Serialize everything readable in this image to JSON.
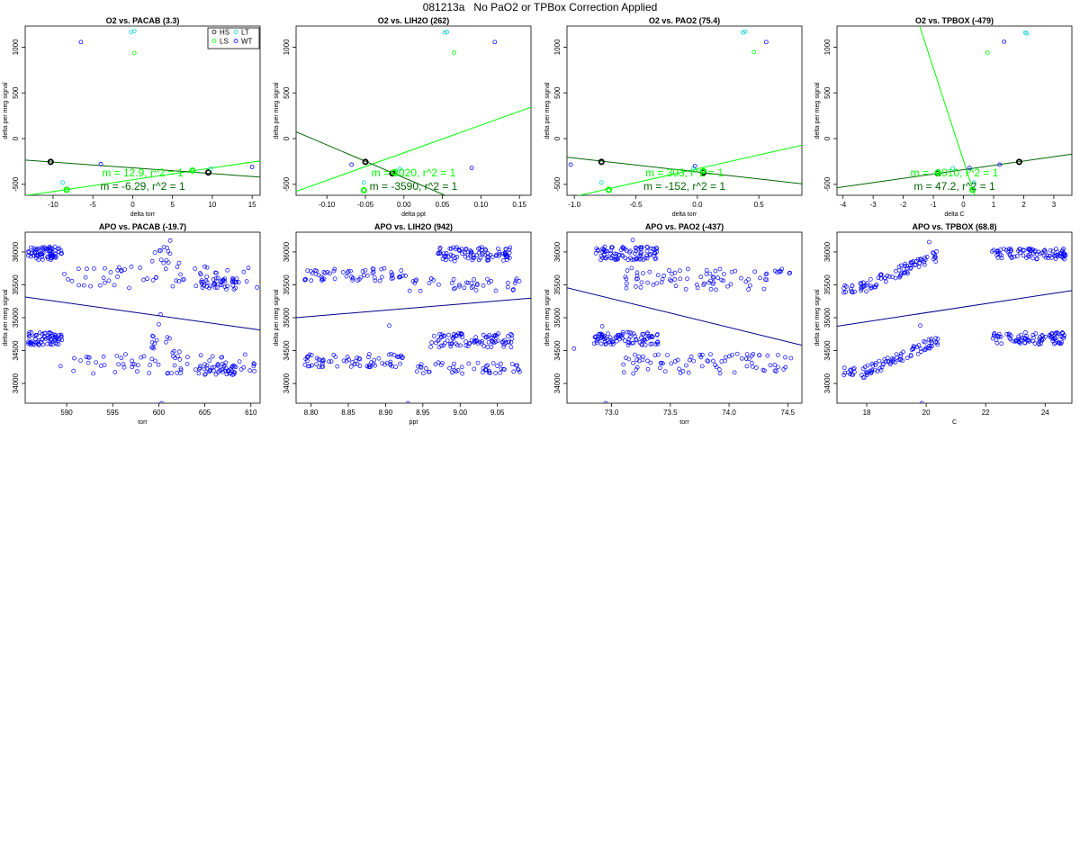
{
  "title": "081213a   No PaO2 or TPBox Correction Applied",
  "colors": {
    "HS": "#000000",
    "LS": "#00ff00",
    "LT": "#00cccc",
    "WT": "#0000ff",
    "fit_dark": "#006400",
    "fit_light": "#00ff00",
    "apo_fit": "#00008b",
    "apo_pts": "#0000ff"
  },
  "legend": {
    "labels": [
      "HS",
      "LS",
      "LT",
      "WT"
    ],
    "display": [
      "HS",
      "LS",
      "LT",
      "WT"
    ]
  },
  "chart_data": [
    {
      "type": "scatter",
      "title": "O2 vs. PACAB (3.3)",
      "xlabel": "delta torr",
      "ylabel": "delta per meg signal",
      "xlim": [
        -13.5,
        16
      ],
      "ylim": [
        -620,
        1230
      ],
      "xticks": [
        -10,
        -5,
        0,
        5,
        10,
        15
      ],
      "yticks": [
        -500,
        0,
        500,
        1000
      ],
      "points": [
        {
          "g": "HS",
          "x": -10.3,
          "y": -255
        },
        {
          "g": "HS",
          "x": 9.5,
          "y": -370
        },
        {
          "g": "LS",
          "x": -8.3,
          "y": -560
        },
        {
          "g": "LS",
          "x": 7.5,
          "y": -350
        },
        {
          "g": "LS",
          "x": 0.2,
          "y": 935
        },
        {
          "g": "LT",
          "x": -0.2,
          "y": 1165
        },
        {
          "g": "LT",
          "x": 0.2,
          "y": 1175
        },
        {
          "g": "LT",
          "x": -8.8,
          "y": -480
        },
        {
          "g": "LT",
          "x": 9.8,
          "y": -330
        },
        {
          "g": "WT",
          "x": -6.5,
          "y": 1055
        },
        {
          "g": "WT",
          "x": -4.0,
          "y": -280
        },
        {
          "g": "WT",
          "x": 15.0,
          "y": -310
        }
      ],
      "fits": [
        {
          "color": "light",
          "slope": 12.9,
          "intercept": -450
        },
        {
          "color": "dark",
          "slope": -6.29,
          "intercept": -320
        }
      ],
      "annotations": [
        {
          "text": "m = 12.9, r^2 = 1",
          "color": "light"
        },
        {
          "text": "m = -6.29, r^2 = 1",
          "color": "dark"
        }
      ],
      "legend": true
    },
    {
      "type": "scatter",
      "title": "O2 vs. LIH2O (262)",
      "xlabel": "delta ppt",
      "ylabel": "delta per meg signal",
      "xlim": [
        -0.14,
        0.165
      ],
      "ylim": [
        -620,
        1230
      ],
      "xticks": [
        -0.1,
        -0.05,
        0.0,
        0.05,
        0.1,
        0.15
      ],
      "yticks": [
        -500,
        0,
        500,
        1000
      ],
      "points": [
        {
          "g": "HS",
          "x": -0.05,
          "y": -255
        },
        {
          "g": "HS",
          "x": -0.015,
          "y": -380
        },
        {
          "g": "LS",
          "x": -0.052,
          "y": -565
        },
        {
          "g": "LS",
          "x": -0.013,
          "y": -370
        },
        {
          "g": "LS",
          "x": 0.065,
          "y": 940
        },
        {
          "g": "LT",
          "x": 0.053,
          "y": 1160
        },
        {
          "g": "LT",
          "x": 0.056,
          "y": 1165
        },
        {
          "g": "LT",
          "x": -0.052,
          "y": -480
        },
        {
          "g": "LT",
          "x": -0.005,
          "y": -330
        },
        {
          "g": "WT",
          "x": 0.118,
          "y": 1055
        },
        {
          "g": "WT",
          "x": -0.068,
          "y": -285
        },
        {
          "g": "WT",
          "x": 0.088,
          "y": -320
        }
      ],
      "fits": [
        {
          "color": "light",
          "slope": 3020,
          "intercept": -155
        },
        {
          "color": "dark",
          "slope": -3590,
          "intercept": -428
        }
      ],
      "annotations": [
        {
          "text": "m = 3020, r^2 = 1",
          "color": "light"
        },
        {
          "text": "m = -3590, r^2 = 1",
          "color": "dark"
        }
      ],
      "legend": false
    },
    {
      "type": "scatter",
      "title": "O2 vs. PAO2 (75.4)",
      "xlabel": "delta torr",
      "ylabel": "delta per meg signal",
      "xlim": [
        -1.06,
        0.85
      ],
      "ylim": [
        -620,
        1230
      ],
      "xticks": [
        -1.0,
        -0.5,
        0.0,
        0.5
      ],
      "yticks": [
        -500,
        0,
        500,
        1000
      ],
      "points": [
        {
          "g": "HS",
          "x": -0.78,
          "y": -255
        },
        {
          "g": "HS",
          "x": 0.05,
          "y": -370
        },
        {
          "g": "LS",
          "x": -0.72,
          "y": -560
        },
        {
          "g": "LS",
          "x": 0.05,
          "y": -355
        },
        {
          "g": "LS",
          "x": 0.46,
          "y": 945
        },
        {
          "g": "LT",
          "x": 0.37,
          "y": 1160
        },
        {
          "g": "LT",
          "x": 0.39,
          "y": 1170
        },
        {
          "g": "LT",
          "x": -0.78,
          "y": -480
        },
        {
          "g": "LT",
          "x": -0.03,
          "y": -325
        },
        {
          "g": "WT",
          "x": 0.56,
          "y": 1055
        },
        {
          "g": "WT",
          "x": -1.03,
          "y": -285
        },
        {
          "g": "WT",
          "x": -0.02,
          "y": -300
        }
      ],
      "fits": [
        {
          "color": "light",
          "slope": 303,
          "intercept": -330
        },
        {
          "color": "dark",
          "slope": -152,
          "intercept": -365
        }
      ],
      "annotations": [
        {
          "text": "m = 303, r^2 = 1",
          "color": "light"
        },
        {
          "text": "m = -152, r^2 = 1",
          "color": "dark"
        }
      ],
      "legend": false
    },
    {
      "type": "scatter",
      "title": "O2 vs. TPBOX (-479)",
      "xlabel": "delta C",
      "ylabel": "delta per meg signal",
      "xlim": [
        -4.2,
        3.6
      ],
      "ylim": [
        -620,
        1230
      ],
      "xticks": [
        -4,
        -3,
        -2,
        -1,
        0,
        1,
        2,
        3
      ],
      "yticks": [
        -500,
        0,
        500,
        1000
      ],
      "points": [
        {
          "g": "HS",
          "x": -0.85,
          "y": -380
        },
        {
          "g": "HS",
          "x": 1.85,
          "y": -255
        },
        {
          "g": "LS",
          "x": 0.3,
          "y": -560
        },
        {
          "g": "LS",
          "x": -0.85,
          "y": -370
        },
        {
          "g": "LS",
          "x": 0.8,
          "y": 940
        },
        {
          "g": "LT",
          "x": 2.05,
          "y": 1160
        },
        {
          "g": "LT",
          "x": 2.1,
          "y": 1150
        },
        {
          "g": "LT",
          "x": -0.35,
          "y": -325
        },
        {
          "g": "LT",
          "x": 0.35,
          "y": -480
        },
        {
          "g": "WT",
          "x": 1.35,
          "y": 1060
        },
        {
          "g": "WT",
          "x": 1.2,
          "y": -285
        },
        {
          "g": "WT",
          "x": 0.2,
          "y": -320
        }
      ],
      "fits": [
        {
          "color": "light",
          "slope": -1010,
          "intercept": -240
        },
        {
          "color": "dark",
          "slope": 47.2,
          "intercept": -340
        }
      ],
      "annotations": [
        {
          "text": "m = -1010, r^2 = 1",
          "color": "light"
        },
        {
          "text": "m = 47.2, r^2 = 1",
          "color": "dark"
        }
      ],
      "legend": false
    },
    {
      "type": "scatter",
      "title": "APO vs. PACAB (-19.7)",
      "xlabel": "torr",
      "ylabel": "delta per meg signal",
      "xlim": [
        585.5,
        611
      ],
      "ylim": [
        33700,
        36300
      ],
      "xticks": [
        590,
        595,
        600,
        605,
        610
      ],
      "yticks": [
        34000,
        34500,
        35000,
        35500,
        36000
      ],
      "fit": {
        "slope": -19.7,
        "intercept": 46850
      },
      "clusters": [
        {
          "x": [
            585.8,
            589.5
          ],
          "y": [
            35880,
            36080
          ],
          "n": 75
        },
        {
          "x": [
            589.2,
            611.2
          ],
          "y": [
            35450,
            35780
          ],
          "n": 60
        },
        {
          "x": [
            585.8,
            589.5
          ],
          "y": [
            34580,
            34780
          ],
          "n": 70
        },
        {
          "x": [
            589.2,
            611.2
          ],
          "y": [
            34150,
            34450
          ],
          "n": 70
        },
        {
          "x": [
            604,
            608.5
          ],
          "y": [
            35430,
            35600
          ],
          "n": 40
        },
        {
          "x": [
            604,
            608.5
          ],
          "y": [
            34130,
            34300
          ],
          "n": 40
        },
        {
          "x": [
            599.2,
            602.6
          ],
          "y": [
            35760,
            36200
          ],
          "n": 14
        },
        {
          "x": [
            599.2,
            602.6
          ],
          "y": [
            34450,
            34750
          ],
          "n": 14
        }
      ],
      "extra_points": [
        {
          "x": 600.3,
          "y": 33700
        },
        {
          "x": 600.2,
          "y": 35050
        },
        {
          "x": 600.0,
          "y": 34900
        }
      ]
    },
    {
      "type": "scatter",
      "title": "APO vs. LIH2O (942)",
      "xlabel": "ppt",
      "ylabel": "delta per meg signal",
      "xlim": [
        8.78,
        9.095
      ],
      "ylim": [
        33700,
        36300
      ],
      "xticks": [
        8.8,
        8.85,
        8.9,
        8.95,
        9.0,
        9.05
      ],
      "yticks": [
        34000,
        34500,
        35000,
        35500,
        36000
      ],
      "fit": {
        "slope": 942,
        "intercept": 26730
      },
      "clusters": [
        {
          "x": [
            8.79,
            8.93
          ],
          "y": [
            35560,
            35760
          ],
          "n": 60
        },
        {
          "x": [
            8.93,
            9.08
          ],
          "y": [
            35400,
            35600
          ],
          "n": 40
        },
        {
          "x": [
            8.97,
            9.07
          ],
          "y": [
            35860,
            36080
          ],
          "n": 90
        },
        {
          "x": [
            8.79,
            8.93
          ],
          "y": [
            34250,
            34450
          ],
          "n": 70
        },
        {
          "x": [
            8.93,
            9.08
          ],
          "y": [
            34150,
            34320
          ],
          "n": 50
        },
        {
          "x": [
            8.96,
            9.07
          ],
          "y": [
            34550,
            34780
          ],
          "n": 90
        }
      ],
      "extra_points": [
        {
          "x": 8.93,
          "y": 33700
        },
        {
          "x": 8.905,
          "y": 34880
        }
      ]
    },
    {
      "type": "scatter",
      "title": "APO vs. PAO2 (-437)",
      "xlabel": "torr",
      "ylabel": "delta per meg signal",
      "xlim": [
        72.62,
        74.62
      ],
      "ylim": [
        33700,
        36300
      ],
      "xticks": [
        73.0,
        73.5,
        74.0,
        74.5
      ],
      "yticks": [
        34000,
        34500,
        35000,
        35500,
        36000
      ],
      "fit": {
        "slope": -437,
        "intercept": 67190
      },
      "clusters": [
        {
          "x": [
            72.85,
            73.4
          ],
          "y": [
            35880,
            36080
          ],
          "n": 90
        },
        {
          "x": [
            73.1,
            74.55
          ],
          "y": [
            35420,
            35760
          ],
          "n": 80
        },
        {
          "x": [
            72.85,
            73.4
          ],
          "y": [
            34580,
            34780
          ],
          "n": 90
        },
        {
          "x": [
            73.1,
            74.55
          ],
          "y": [
            34150,
            34450
          ],
          "n": 80
        }
      ],
      "extra_points": [
        {
          "x": 72.95,
          "y": 33700
        },
        {
          "x": 72.68,
          "y": 34530
        },
        {
          "x": 73.18,
          "y": 36180
        },
        {
          "x": 72.92,
          "y": 34870
        }
      ]
    },
    {
      "type": "scatter",
      "title": "APO vs. TPBOX (68.8)",
      "xlabel": "C",
      "ylabel": "delta per meg signal",
      "xlim": [
        17.0,
        24.9
      ],
      "ylim": [
        33700,
        36300
      ],
      "xticks": [
        18,
        20,
        22,
        24
      ],
      "yticks": [
        34000,
        34500,
        35000,
        35500,
        36000
      ],
      "fit": {
        "slope": 68.8,
        "intercept": 33700
      },
      "clusters": [
        {
          "x": [
            17.2,
            17.6
          ],
          "y": [
            35380,
            35520
          ],
          "n": 12
        },
        {
          "x": [
            17.2,
            17.6
          ],
          "y": [
            34120,
            34240
          ],
          "n": 12
        },
        {
          "x": [
            22.2,
            24.7
          ],
          "y": [
            35890,
            36050
          ],
          "n": 90
        },
        {
          "x": [
            22.2,
            24.7
          ],
          "y": [
            34590,
            34780
          ],
          "n": 90
        }
      ],
      "ramps": [
        {
          "x": [
            17.8,
            20.4
          ],
          "y": [
            35450,
            35950
          ],
          "n": 80,
          "spread": 80
        },
        {
          "x": [
            17.8,
            20.4
          ],
          "y": [
            34150,
            34650
          ],
          "n": 80,
          "spread": 80
        }
      ],
      "extra_points": [
        {
          "x": 19.85,
          "y": 33700
        },
        {
          "x": 19.8,
          "y": 34880
        },
        {
          "x": 20.1,
          "y": 36150
        }
      ]
    }
  ]
}
